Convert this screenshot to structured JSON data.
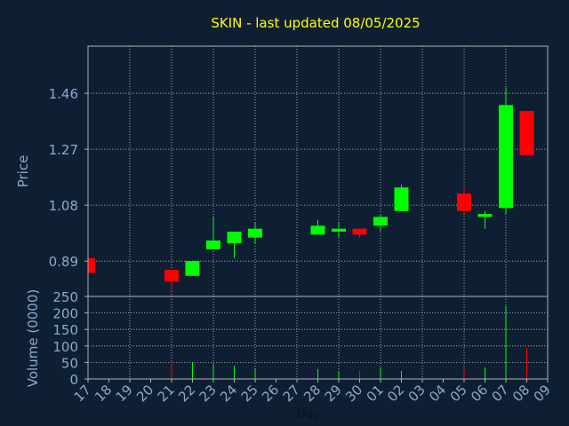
{
  "chart_data": {
    "type": "candlestick",
    "title": "SKIN - last updated 08/05/2025",
    "xlabel": "Day",
    "ylabel_price": "Price",
    "ylabel_volume": "Volume (0000)",
    "price_ylim": [
      0.77,
      1.62
    ],
    "price_ticks": [
      "0.89",
      "1.08",
      "1.27",
      "1.46"
    ],
    "volume_ylim": [
      0,
      250
    ],
    "volume_ticks": [
      "0",
      "50",
      "100",
      "150",
      "200",
      "250"
    ],
    "x_tick_labels": [
      "17",
      "18",
      "19",
      "20",
      "21",
      "22",
      "23",
      "24",
      "25",
      "26",
      "27",
      "28",
      "29",
      "30",
      "01",
      "02",
      "03",
      "04",
      "05",
      "06",
      "07",
      "08",
      "09"
    ],
    "grid": true,
    "colors": {
      "up": "#00ff00",
      "down": "#ff0000",
      "background": "#0f1f33",
      "title": "#ffff00",
      "axis_text": "#8aaacc",
      "frame": "#b0b0b0"
    },
    "candles": [
      {
        "x": "17",
        "open": 0.9,
        "high": 0.9,
        "low": 0.85,
        "close": 0.85
      },
      {
        "x": "21",
        "open": 0.86,
        "high": 0.86,
        "low": 0.79,
        "close": 0.82
      },
      {
        "x": "22",
        "open": 0.84,
        "high": 0.89,
        "low": 0.84,
        "close": 0.89
      },
      {
        "x": "23",
        "open": 0.93,
        "high": 1.04,
        "low": 0.93,
        "close": 0.96
      },
      {
        "x": "24",
        "open": 0.95,
        "high": 0.99,
        "low": 0.9,
        "close": 0.99
      },
      {
        "x": "25",
        "open": 0.97,
        "high": 1.02,
        "low": 0.95,
        "close": 1.0
      },
      {
        "x": "28",
        "open": 0.98,
        "high": 1.03,
        "low": 0.98,
        "close": 1.01
      },
      {
        "x": "29",
        "open": 0.99,
        "high": 1.02,
        "low": 0.97,
        "close": 1.0
      },
      {
        "x": "30",
        "open": 1.0,
        "high": 1.0,
        "low": 0.97,
        "close": 0.98
      },
      {
        "x": "01",
        "open": 1.01,
        "high": 1.05,
        "low": 0.99,
        "close": 1.04
      },
      {
        "x": "02",
        "open": 1.06,
        "high": 1.15,
        "low": 1.06,
        "close": 1.14
      },
      {
        "x": "05",
        "open": 1.12,
        "high": 1.14,
        "low": 1.05,
        "close": 1.06
      },
      {
        "x": "06",
        "open": 1.04,
        "high": 1.06,
        "low": 1.0,
        "close": 1.05
      },
      {
        "x": "07",
        "open": 1.07,
        "high": 1.48,
        "low": 1.05,
        "close": 1.42
      },
      {
        "x": "08",
        "open": 1.4,
        "high": 1.4,
        "low": 1.25,
        "close": 1.25
      }
    ],
    "volume": [
      {
        "x": "21",
        "value": 55,
        "direction": "down"
      },
      {
        "x": "22",
        "value": 50,
        "direction": "up"
      },
      {
        "x": "23",
        "value": 45,
        "direction": "up"
      },
      {
        "x": "24",
        "value": 40,
        "direction": "up"
      },
      {
        "x": "25",
        "value": 30,
        "direction": "up"
      },
      {
        "x": "28",
        "value": 30,
        "direction": "up"
      },
      {
        "x": "29",
        "value": 25,
        "direction": "up"
      },
      {
        "x": "30",
        "value": 25,
        "direction": "down"
      },
      {
        "x": "01",
        "value": 35,
        "direction": "up"
      },
      {
        "x": "02",
        "value": 25,
        "direction": "up"
      },
      {
        "x": "05",
        "value": 35,
        "direction": "down"
      },
      {
        "x": "06",
        "value": 35,
        "direction": "up"
      },
      {
        "x": "07",
        "value": 220,
        "direction": "up"
      },
      {
        "x": "08",
        "value": 95,
        "direction": "down"
      }
    ]
  }
}
